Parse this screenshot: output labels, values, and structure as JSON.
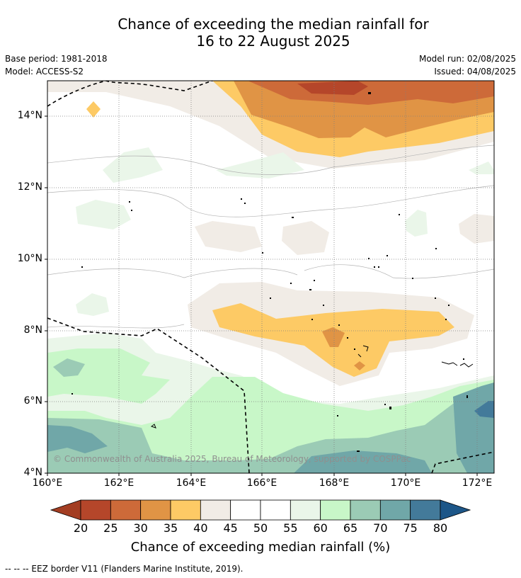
{
  "title_line1": "Chance of exceeding the median rainfall for",
  "title_line2": "16 to 22 August 2025",
  "base_period": "Base period: 1981-2018",
  "model": "Model: ACCESS-S2",
  "model_run": "Model run: 02/08/2025",
  "issued": "Issued: 04/08/2025",
  "lat_labels": [
    "14°N",
    "12°N",
    "10°N",
    "8°N",
    "6°N",
    "4°N"
  ],
  "lon_labels": [
    "160°E",
    "162°E",
    "164°E",
    "166°E",
    "168°E",
    "170°E",
    "172°E"
  ],
  "copyright": "© Commonwealth of Australia 2025, Bureau of Meteorology, supported by COSPPac",
  "colorbar": {
    "ticks": [
      "20",
      "25",
      "30",
      "35",
      "40",
      "45",
      "50",
      "55",
      "60",
      "65",
      "70",
      "75",
      "80"
    ],
    "colors": [
      "#b5462a",
      "#cd6a39",
      "#e09445",
      "#fdca65",
      "#f1ece6",
      "#ffffff",
      "#ffffff",
      "#eaf6e9",
      "#c8f7c8",
      "#9bcbb5",
      "#70a7a8",
      "#437a9a"
    ],
    "low_color": "#a33d22",
    "high_color": "#1d5688",
    "title": "Chance of exceeding median rainfall (%)"
  },
  "footnote": "--  --  -- EEZ border V11 (Flanders Marine Institute, 2019)."
}
